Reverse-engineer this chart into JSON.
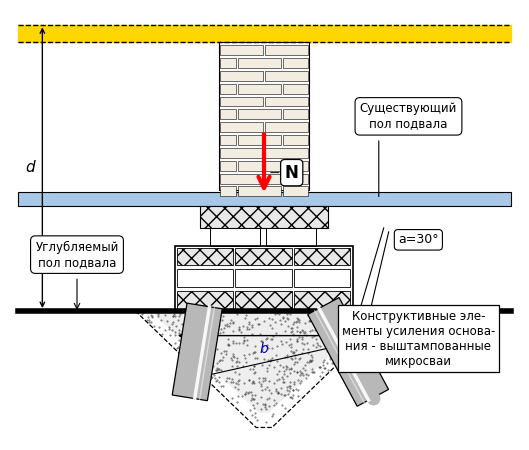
{
  "bg_color": "#ffffff",
  "yellow_stripe": "#ffd700",
  "floor_blue": "#a8c8e8",
  "brick_face": "#f2ede0",
  "brick_edge": "#000000",
  "hatch_face": "#e8e8e8",
  "pile_face": "#c8c8c8",
  "soil_dot": "#888888",
  "label_existing_floor": "Существующий\nпол подвала",
  "label_deepened_floor": "Углубляемый\nпол подвала",
  "label_elements": "Конструктивные эле-\nменты усиления основа-\nния - выштампованные\nмикросваи",
  "label_N": "N",
  "label_d": "d",
  "label_b": "b",
  "label_angle": "a=30°",
  "annotation_fontsize": 8.5
}
